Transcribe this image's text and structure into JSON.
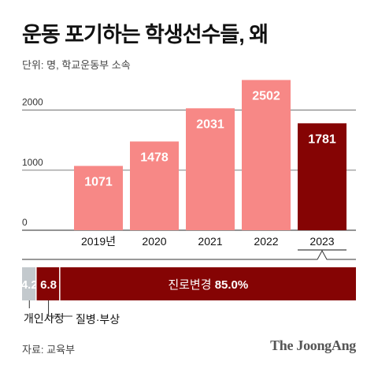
{
  "title": "운동 포기하는 학생선수들, 왜",
  "unit_note": "단위: 명, 학교운동부 소속",
  "source": "자료: 교육부",
  "brand": "The JoongAng",
  "colors": {
    "bar": "#f78886",
    "highlight": "#850404",
    "gray": "#c3c9cd",
    "grid": "#555555"
  },
  "chart_data": {
    "type": "bar",
    "categories": [
      "2019년",
      "2020",
      "2021",
      "2022",
      "2023"
    ],
    "values": [
      1071,
      1478,
      2031,
      2502,
      1781
    ],
    "highlight_index": 4,
    "y_ticks": [
      0,
      1000,
      2000
    ],
    "ylim": [
      0,
      2600
    ],
    "grid": true
  },
  "breakdown": {
    "title": "2023",
    "segments": [
      {
        "label": "개인사정",
        "value": 4.2,
        "value_text": "4.2",
        "color": "#c3c9cd"
      },
      {
        "label": "질병·부상",
        "value": 6.8,
        "value_text": "6.8",
        "color": "#850404"
      },
      {
        "label": "진로변경",
        "value": 85.0,
        "value_text": "85.0%",
        "color": "#850404"
      }
    ]
  }
}
